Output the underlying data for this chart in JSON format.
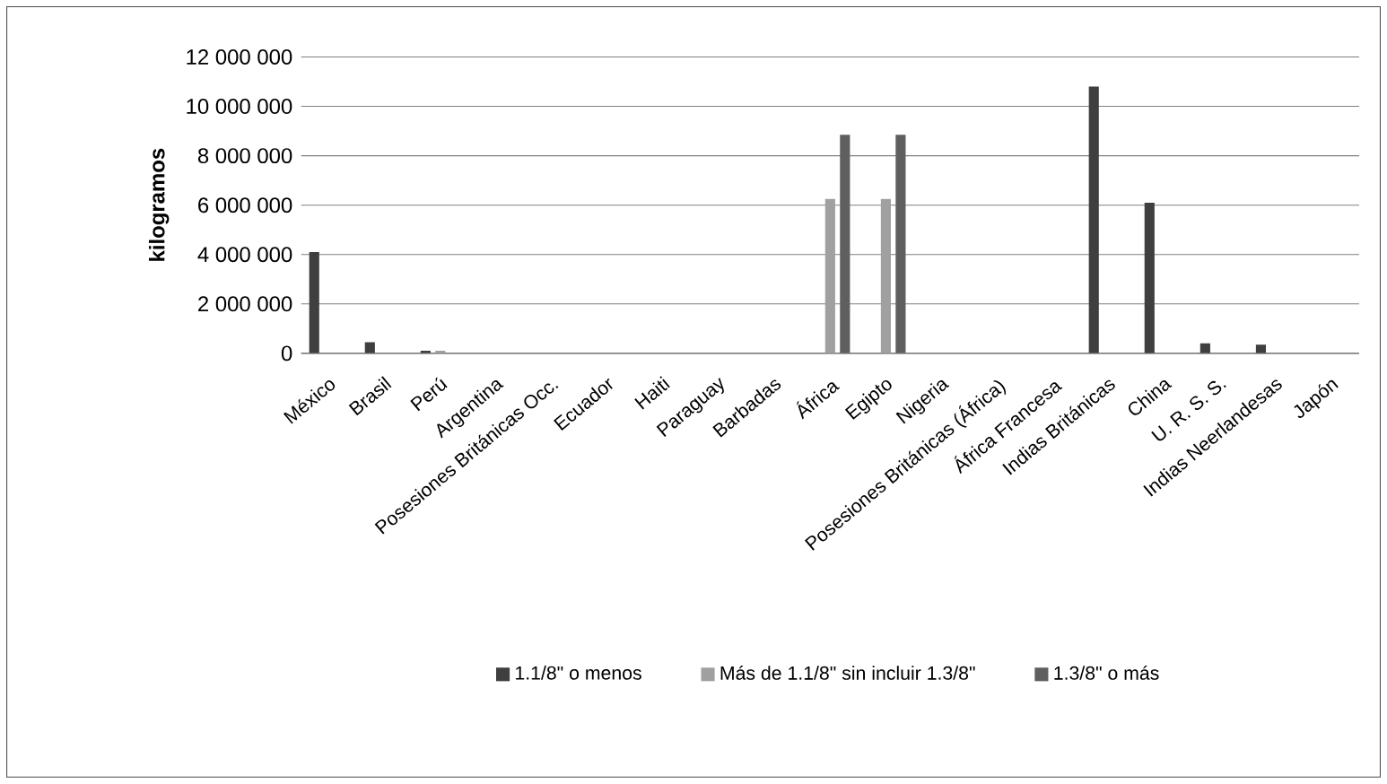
{
  "chart_data": {
    "type": "bar",
    "ylabel": "kilogramos",
    "categories": [
      "México",
      "Brasil",
      "Perú",
      "Argentina",
      "Posesiones Británicas Occ.",
      "Ecuador",
      "Haiti",
      "Paraguay",
      "Barbadas",
      "África",
      "Egipto",
      "Nigeria",
      "Posesiones Británicas (África)",
      "África Francesa",
      "Indias Británicas",
      "China",
      "U. R. S. S.",
      "Indias Neerlandesas",
      "Japón"
    ],
    "series": [
      {
        "name": "1.1/8\" o menos",
        "color": "#3f3f3f",
        "values": [
          4100000,
          450000,
          100000,
          0,
          0,
          0,
          0,
          0,
          0,
          0,
          0,
          0,
          0,
          0,
          10800000,
          6100000,
          400000,
          350000,
          0
        ]
      },
      {
        "name": "Más de 1.1/8\" sin incluir 1.3/8\"",
        "color": "#a0a0a0",
        "values": [
          0,
          0,
          100000,
          0,
          0,
          0,
          0,
          0,
          0,
          6250000,
          6250000,
          0,
          0,
          0,
          0,
          0,
          0,
          0,
          0
        ]
      },
      {
        "name": "1.3/8\" o más",
        "color": "#5f5f5f",
        "values": [
          0,
          0,
          0,
          0,
          0,
          0,
          0,
          0,
          0,
          8850000,
          8850000,
          0,
          0,
          0,
          0,
          0,
          0,
          0,
          0
        ]
      }
    ],
    "ylim": [
      0,
      12000000
    ],
    "yticks": [
      {
        "value": 0,
        "label": "0"
      },
      {
        "value": 2000000,
        "label": "2 000 000"
      },
      {
        "value": 4000000,
        "label": "4 000 000"
      },
      {
        "value": 6000000,
        "label": "6 000 000"
      },
      {
        "value": 8000000,
        "label": "8 000 000"
      },
      {
        "value": 10000000,
        "label": "10 000 000"
      },
      {
        "value": 12000000,
        "label": "12 000 000"
      }
    ],
    "grid": "y",
    "legend": "bottom"
  }
}
